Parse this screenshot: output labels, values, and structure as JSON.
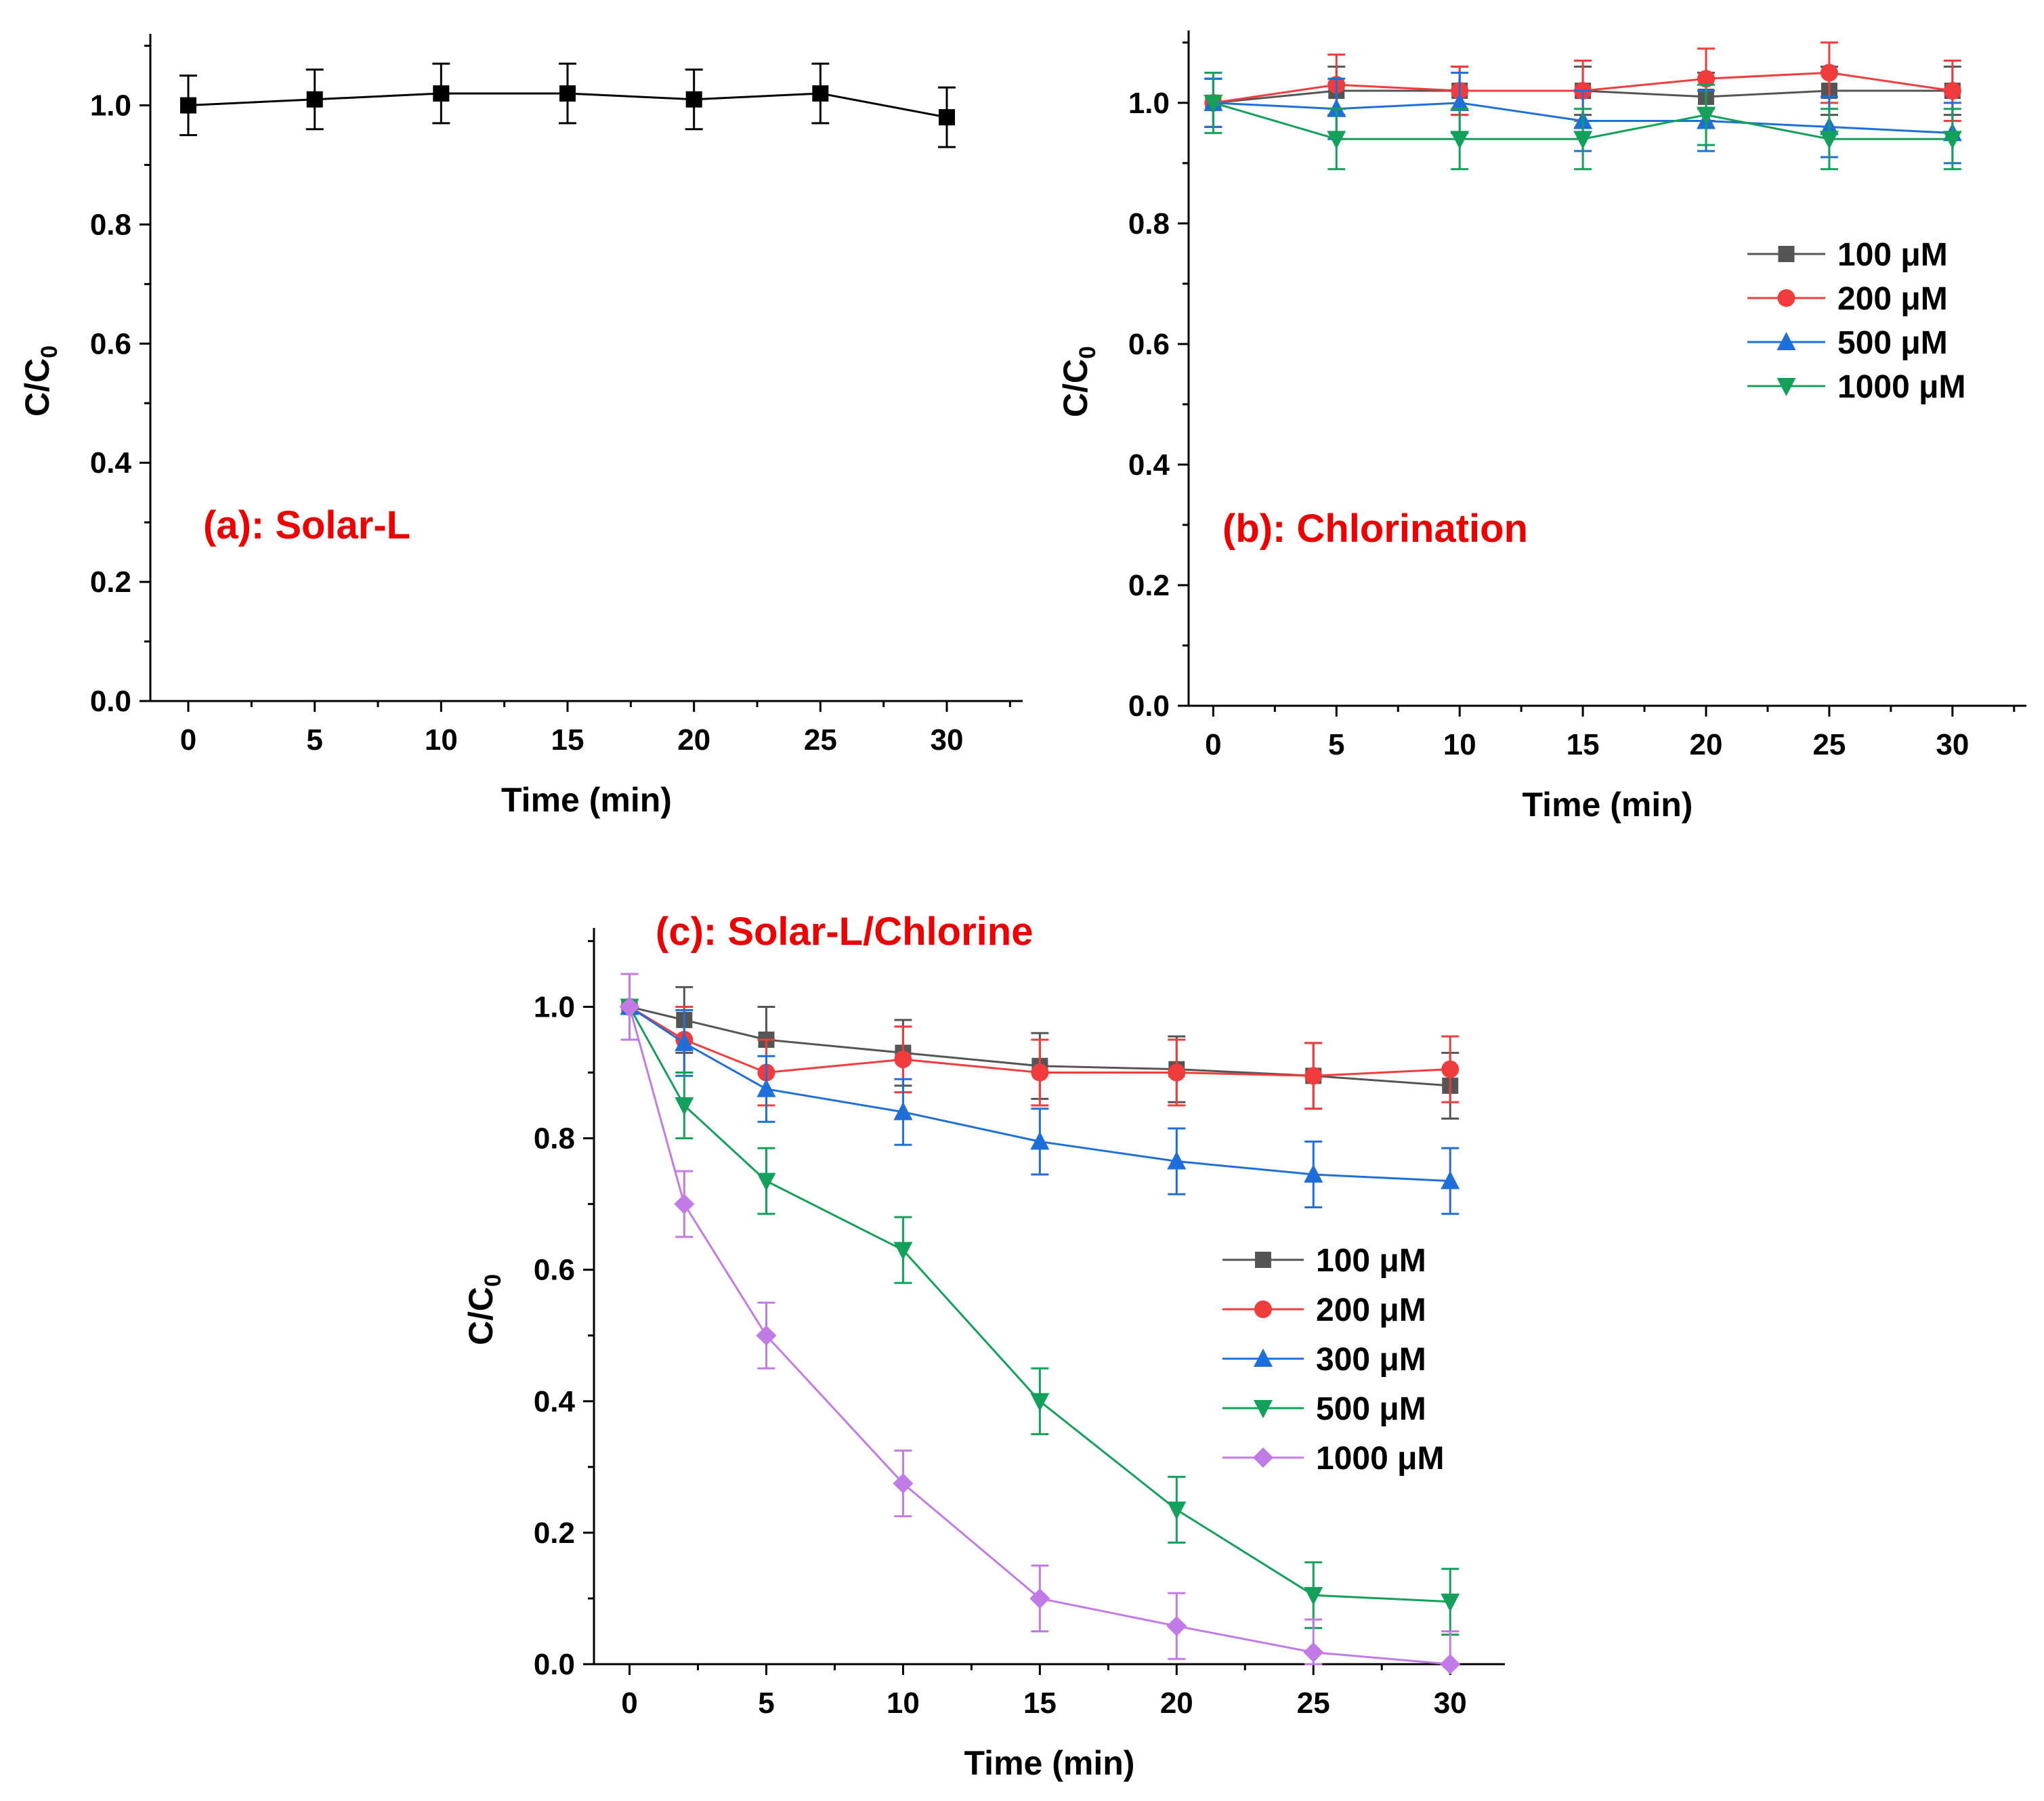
{
  "chart_data": [
    {
      "id": "a",
      "type": "line",
      "title": "(a): Solar-L",
      "xlabel": "Time (min)",
      "ylabel_main": "C/C",
      "ylabel_sub": "0",
      "xlim": [
        -1.5,
        33
      ],
      "ylim": [
        0,
        1.12
      ],
      "xticks": [
        0,
        5,
        10,
        15,
        20,
        25,
        30
      ],
      "xtick_labels": [
        "0",
        "5",
        "10",
        "15",
        "20",
        "25",
        "30"
      ],
      "yticks": [
        0,
        0.2,
        0.4,
        0.6,
        0.8,
        1.0
      ],
      "ytick_labels": [
        "0.0",
        "0.2",
        "0.4",
        "0.6",
        "0.8",
        "1.0"
      ],
      "x": [
        0,
        5,
        10,
        15,
        20,
        25,
        30
      ],
      "series": [
        {
          "name": "",
          "color": "#000000",
          "marker": "square",
          "values": [
            1.0,
            1.01,
            1.02,
            1.02,
            1.01,
            1.02,
            0.98
          ],
          "errors": [
            0.05,
            0.05,
            0.05,
            0.05,
            0.05,
            0.05,
            0.05
          ]
        }
      ]
    },
    {
      "id": "b",
      "type": "line",
      "title": "(b): Chlorination",
      "xlabel": "Time (min)",
      "ylabel_main": "C/C",
      "ylabel_sub": "0",
      "xlim": [
        -1,
        33
      ],
      "ylim": [
        0,
        1.12
      ],
      "xticks": [
        0,
        5,
        10,
        15,
        20,
        25,
        30
      ],
      "xtick_labels": [
        "0",
        "5",
        "10",
        "15",
        "20",
        "25",
        "30"
      ],
      "yticks": [
        0,
        0.2,
        0.4,
        0.6,
        0.8,
        1.0
      ],
      "ytick_labels": [
        "0.0",
        "0.2",
        "0.4",
        "0.6",
        "0.8",
        "1.0"
      ],
      "legend_position": "center-right",
      "x": [
        0,
        5,
        10,
        15,
        20,
        25,
        30
      ],
      "series": [
        {
          "name": "100 μM",
          "color": "#555555",
          "marker": "square",
          "values": [
            1.0,
            1.02,
            1.02,
            1.02,
            1.01,
            1.02,
            1.02
          ],
          "errors": [
            0.04,
            0.04,
            0.04,
            0.04,
            0.04,
            0.04,
            0.04
          ]
        },
        {
          "name": "200 μM",
          "color": "#f03c3c",
          "marker": "circle",
          "values": [
            1.0,
            1.03,
            1.02,
            1.02,
            1.04,
            1.05,
            1.02
          ],
          "errors": [
            0.04,
            0.05,
            0.04,
            0.05,
            0.05,
            0.05,
            0.05
          ]
        },
        {
          "name": "500 μM",
          "color": "#1e6fd9",
          "marker": "triangle-up",
          "values": [
            1.0,
            0.99,
            1.0,
            0.97,
            0.97,
            0.96,
            0.95
          ],
          "errors": [
            0.04,
            0.05,
            0.05,
            0.05,
            0.05,
            0.05,
            0.05
          ]
        },
        {
          "name": "1000 μM",
          "color": "#12a05a",
          "marker": "triangle-down",
          "values": [
            1.0,
            0.94,
            0.94,
            0.94,
            0.98,
            0.94,
            0.94
          ],
          "errors": [
            0.05,
            0.05,
            0.05,
            0.05,
            0.05,
            0.05,
            0.05
          ]
        }
      ]
    },
    {
      "id": "c",
      "type": "line",
      "title": "(c): Solar-L/Chlorine",
      "xlabel": "Time (min)",
      "ylabel_main": "C/C",
      "ylabel_sub": "0",
      "xlim": [
        -1.3,
        32
      ],
      "ylim": [
        0,
        1.12
      ],
      "xticks": [
        0,
        5,
        10,
        15,
        20,
        25,
        30
      ],
      "xtick_labels": [
        "0",
        "5",
        "10",
        "15",
        "20",
        "25",
        "30"
      ],
      "yticks": [
        0,
        0.2,
        0.4,
        0.6,
        0.8,
        1.0
      ],
      "ytick_labels": [
        "0.0",
        "0.2",
        "0.4",
        "0.6",
        "0.8",
        "1.0"
      ],
      "legend_position": "center-right",
      "x": [
        0,
        2,
        5,
        10,
        15,
        20,
        25,
        30
      ],
      "series": [
        {
          "name": "100 μM",
          "color": "#555555",
          "marker": "square",
          "values": [
            1.0,
            0.98,
            0.95,
            0.93,
            0.91,
            0.905,
            0.895,
            0.88
          ],
          "errors": [
            0.05,
            0.05,
            0.05,
            0.05,
            0.05,
            0.05,
            0.05,
            0.05
          ]
        },
        {
          "name": "200 μM",
          "color": "#f03c3c",
          "marker": "circle",
          "values": [
            1.0,
            0.95,
            0.9,
            0.92,
            0.9,
            0.9,
            0.895,
            0.905
          ],
          "errors": [
            0.05,
            0.05,
            0.05,
            0.05,
            0.05,
            0.05,
            0.05,
            0.05
          ]
        },
        {
          "name": "300 μM",
          "color": "#1e6fd9",
          "marker": "triangle-up",
          "values": [
            1.0,
            0.945,
            0.875,
            0.84,
            0.795,
            0.765,
            0.745,
            0.735
          ],
          "errors": [
            0.05,
            0.05,
            0.05,
            0.05,
            0.05,
            0.05,
            0.05,
            0.05
          ]
        },
        {
          "name": "500 μM",
          "color": "#12a05a",
          "marker": "triangle-down",
          "values": [
            1.0,
            0.85,
            0.735,
            0.63,
            0.4,
            0.235,
            0.105,
            0.095
          ],
          "errors": [
            0.05,
            0.05,
            0.05,
            0.05,
            0.05,
            0.05,
            0.05,
            0.05
          ]
        },
        {
          "name": "1000 μM",
          "color": "#c27be6",
          "marker": "diamond",
          "values": [
            1.0,
            0.7,
            0.5,
            0.275,
            0.1,
            0.058,
            0.018,
            0.0
          ],
          "errors": [
            0.05,
            0.05,
            0.05,
            0.05,
            0.05,
            0.05,
            0.05,
            0.05
          ]
        }
      ]
    }
  ]
}
